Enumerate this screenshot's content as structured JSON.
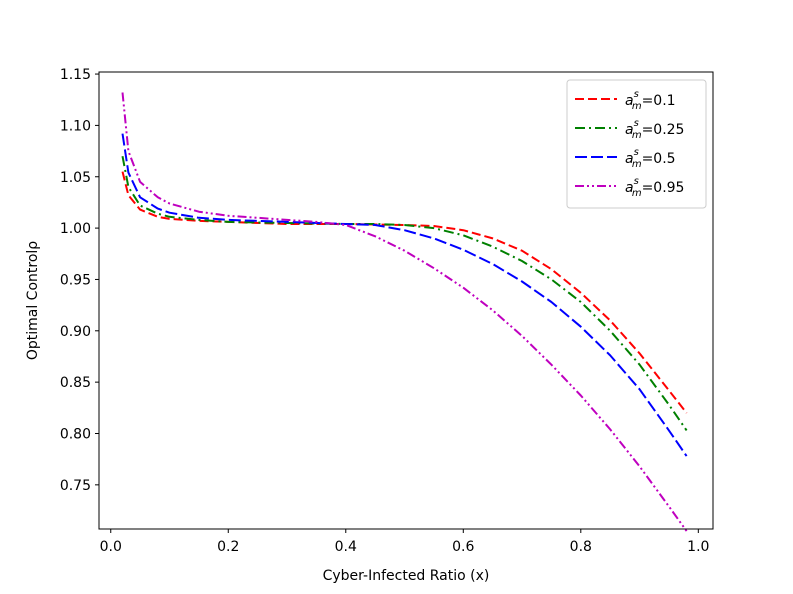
{
  "chart_data": {
    "type": "line",
    "xlabel": "Cyber-Infected Ratio (x)",
    "ylabel": "Optimal Controlρ",
    "xlim": [
      -0.02,
      1.025
    ],
    "ylim": [
      0.707,
      1.152
    ],
    "xticks": [
      0.0,
      0.2,
      0.4,
      0.6,
      0.8,
      1.0
    ],
    "xtick_labels": [
      "0.0",
      "0.2",
      "0.4",
      "0.6",
      "0.8",
      "1.0"
    ],
    "yticks": [
      0.75,
      0.8,
      0.85,
      0.9,
      0.95,
      1.0,
      1.05,
      1.1,
      1.15
    ],
    "ytick_labels": [
      "0.75",
      "0.80",
      "0.85",
      "0.90",
      "0.95",
      "1.00",
      "1.05",
      "1.10",
      "1.15"
    ],
    "grid": false,
    "legend_position": "top-right",
    "series": [
      {
        "name": "aₘˢ=0.1",
        "legend": {
          "base": "a",
          "sup": "s",
          "sub": "m",
          "value": "=0.1"
        },
        "color": "#ff0000",
        "dash": "dashed",
        "x": [
          0.02,
          0.03,
          0.05,
          0.08,
          0.1,
          0.15,
          0.2,
          0.3,
          0.4,
          0.5,
          0.55,
          0.6,
          0.65,
          0.7,
          0.75,
          0.8,
          0.85,
          0.9,
          0.95,
          0.98
        ],
        "y": [
          1.055,
          1.032,
          1.018,
          1.011,
          1.009,
          1.007,
          1.006,
          1.004,
          1.004,
          1.003,
          1.002,
          0.998,
          0.99,
          0.978,
          0.96,
          0.937,
          0.91,
          0.878,
          0.842,
          0.82
        ]
      },
      {
        "name": "aₘˢ=0.25",
        "legend": {
          "base": "a",
          "sup": "s",
          "sub": "m",
          "value": "=0.25"
        },
        "color": "#008000",
        "dash": "dashdot",
        "x": [
          0.02,
          0.03,
          0.05,
          0.08,
          0.1,
          0.15,
          0.2,
          0.3,
          0.4,
          0.45,
          0.5,
          0.55,
          0.6,
          0.65,
          0.7,
          0.75,
          0.8,
          0.85,
          0.9,
          0.95,
          0.98
        ],
        "y": [
          1.07,
          1.04,
          1.022,
          1.014,
          1.011,
          1.008,
          1.006,
          1.005,
          1.004,
          1.004,
          1.003,
          1.0,
          0.993,
          0.982,
          0.968,
          0.95,
          0.928,
          0.9,
          0.867,
          0.828,
          0.803
        ]
      },
      {
        "name": "aₘˢ=0.5",
        "legend": {
          "base": "a",
          "sup": "s",
          "sub": "m",
          "value": "=0.5"
        },
        "color": "#0000ff",
        "dash": "longdash",
        "x": [
          0.02,
          0.03,
          0.05,
          0.08,
          0.1,
          0.15,
          0.2,
          0.3,
          0.4,
          0.45,
          0.5,
          0.55,
          0.6,
          0.65,
          0.7,
          0.75,
          0.8,
          0.85,
          0.9,
          0.95,
          0.98
        ],
        "y": [
          1.092,
          1.054,
          1.03,
          1.019,
          1.015,
          1.01,
          1.008,
          1.006,
          1.004,
          1.003,
          0.998,
          0.99,
          0.979,
          0.965,
          0.948,
          0.928,
          0.904,
          0.876,
          0.843,
          0.803,
          0.778
        ]
      },
      {
        "name": "aₘˢ=0.95",
        "legend": {
          "base": "a",
          "sup": "s",
          "sub": "m",
          "value": "=0.95"
        },
        "color": "#bf00bf",
        "dash": "dashdotdot",
        "x": [
          0.02,
          0.03,
          0.05,
          0.08,
          0.1,
          0.15,
          0.2,
          0.25,
          0.3,
          0.35,
          0.4,
          0.45,
          0.5,
          0.55,
          0.6,
          0.65,
          0.7,
          0.75,
          0.8,
          0.85,
          0.9,
          0.95,
          0.98
        ],
        "y": [
          1.132,
          1.075,
          1.045,
          1.03,
          1.024,
          1.016,
          1.012,
          1.01,
          1.008,
          1.006,
          1.003,
          0.992,
          0.978,
          0.961,
          0.942,
          0.92,
          0.895,
          0.867,
          0.837,
          0.804,
          0.768,
          0.729,
          0.705
        ]
      }
    ]
  }
}
